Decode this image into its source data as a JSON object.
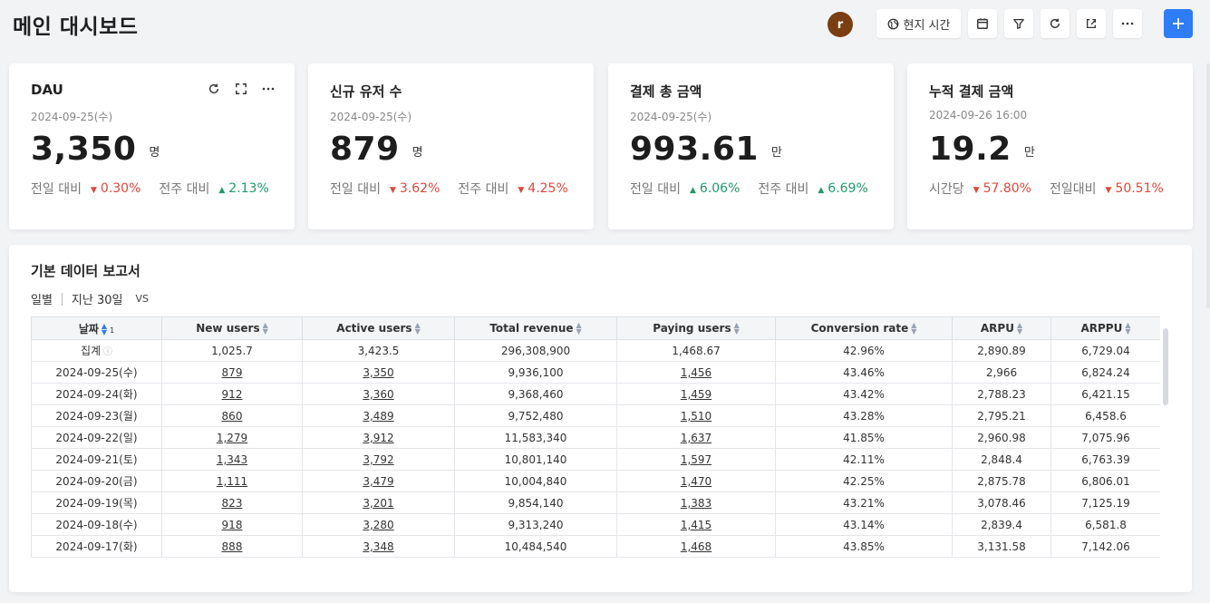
{
  "header": {
    "title": "메인 대시보드",
    "avatar_initial": "r",
    "timezone_label": "현지 시간",
    "add_label": "+"
  },
  "cards": [
    {
      "title": "DAU",
      "date": "2024-09-25(수)",
      "value": "3,350",
      "unit": "명",
      "compares": [
        {
          "label": "전일 대비",
          "direction": "down",
          "value": "0.30%"
        },
        {
          "label": "전주 대비",
          "direction": "up",
          "value": "2.13%"
        }
      ]
    },
    {
      "title": "신규 유저 수",
      "date": "2024-09-25(수)",
      "value": "879",
      "unit": "명",
      "compares": [
        {
          "label": "전일 대비",
          "direction": "down",
          "value": "3.62%"
        },
        {
          "label": "전주 대비",
          "direction": "down",
          "value": "4.25%"
        }
      ]
    },
    {
      "title": "결제 총 금액",
      "date": "2024-09-25(수)",
      "value": "993.61",
      "unit": "만",
      "compares": [
        {
          "label": "전일 대비",
          "direction": "up",
          "value": "6.06%"
        },
        {
          "label": "전주 대비",
          "direction": "up",
          "value": "6.69%"
        }
      ]
    },
    {
      "title": "누적 결제 금액",
      "date": "2024-09-26 16:00",
      "value": "19.2",
      "unit": "만",
      "compares": [
        {
          "label": "시간당",
          "direction": "down",
          "value": "57.80%"
        },
        {
          "label": "전일대비",
          "direction": "down",
          "value": "50.51%"
        }
      ]
    }
  ],
  "report": {
    "title": "기본 데이터 보고서",
    "granularity": "일별",
    "period": "지난 30일",
    "vs_label": "VS",
    "columns": [
      "날짜",
      "New users",
      "Active users",
      "Total revenue",
      "Paying users",
      "Conversion rate",
      "ARPU",
      "ARPPU"
    ],
    "sort_index": "1",
    "summary": {
      "label": "집계",
      "values": [
        "1,025.7",
        "3,423.5",
        "296,308,900",
        "1,468.67",
        "42.96%",
        "2,890.89",
        "6,729.04"
      ]
    },
    "rows": [
      [
        "2024-09-25(수)",
        "879",
        "3,350",
        "9,936,100",
        "1,456",
        "43.46%",
        "2,966",
        "6,824.24"
      ],
      [
        "2024-09-24(화)",
        "912",
        "3,360",
        "9,368,460",
        "1,459",
        "43.42%",
        "2,788.23",
        "6,421.15"
      ],
      [
        "2024-09-23(월)",
        "860",
        "3,489",
        "9,752,480",
        "1,510",
        "43.28%",
        "2,795.21",
        "6,458.6"
      ],
      [
        "2024-09-22(일)",
        "1,279",
        "3,912",
        "11,583,340",
        "1,637",
        "41.85%",
        "2,960.98",
        "7,075.96"
      ],
      [
        "2024-09-21(토)",
        "1,343",
        "3,792",
        "10,801,140",
        "1,597",
        "42.11%",
        "2,848.4",
        "6,763.39"
      ],
      [
        "2024-09-20(금)",
        "1,111",
        "3,479",
        "10,004,840",
        "1,470",
        "42.25%",
        "2,875.78",
        "6,806.01"
      ],
      [
        "2024-09-19(목)",
        "823",
        "3,201",
        "9,854,140",
        "1,383",
        "43.21%",
        "3,078.46",
        "7,125.19"
      ],
      [
        "2024-09-18(수)",
        "918",
        "3,280",
        "9,313,240",
        "1,415",
        "43.14%",
        "2,839.4",
        "6,581.8"
      ],
      [
        "2024-09-17(화)",
        "888",
        "3,348",
        "10,484,540",
        "1,468",
        "43.85%",
        "3,131.58",
        "7,142.06"
      ]
    ]
  },
  "colors": {
    "down": "#e0463c",
    "up": "#1e9c68",
    "accent": "#2e7cf6",
    "avatar": "#7a3e12"
  },
  "icons": {
    "toolbar": [
      "globe-icon",
      "calendar-icon",
      "filter-icon",
      "refresh-icon",
      "share-icon",
      "more-icon",
      "plus-icon"
    ],
    "card": [
      "refresh-icon",
      "fullscreen-icon",
      "more-icon"
    ]
  }
}
